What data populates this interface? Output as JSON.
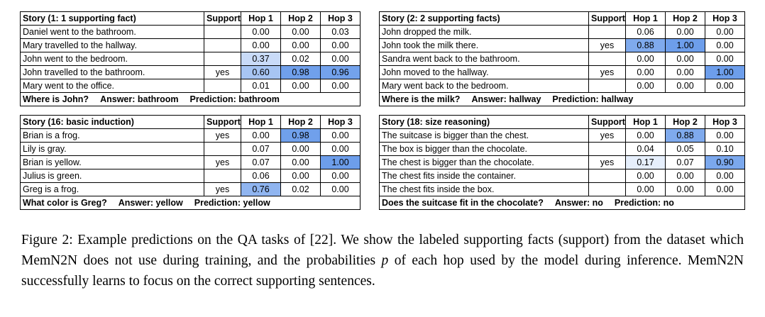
{
  "figure": {
    "highlight_color": "#6d9eeb",
    "min_highlight": 0.15,
    "column_headers": {
      "support": "Support",
      "hops": [
        "Hop 1",
        "Hop 2",
        "Hop 3"
      ]
    },
    "tables": [
      {
        "title": "Story (1: 1 supporting fact)",
        "rows": [
          {
            "sentence": "Daniel went to the bathroom.",
            "support": "",
            "hops": [
              "0.00",
              "0.00",
              "0.03"
            ]
          },
          {
            "sentence": "Mary travelled to the hallway.",
            "support": "",
            "hops": [
              "0.00",
              "0.00",
              "0.00"
            ]
          },
          {
            "sentence": "John went to the bedroom.",
            "support": "",
            "hops": [
              "0.37",
              "0.02",
              "0.00"
            ]
          },
          {
            "sentence": "John travelled to the bathroom.",
            "support": "yes",
            "hops": [
              "0.60",
              "0.98",
              "0.96"
            ]
          },
          {
            "sentence": "Mary went to the office.",
            "support": "",
            "hops": [
              "0.01",
              "0.00",
              "0.00"
            ]
          }
        ],
        "footer": {
          "question": "Where is John?",
          "answer": "Answer: bathroom",
          "prediction": "Prediction: bathroom"
        }
      },
      {
        "title": "Story (2: 2 supporting facts)",
        "rows": [
          {
            "sentence": "John dropped the milk.",
            "support": "",
            "hops": [
              "0.06",
              "0.00",
              "0.00"
            ]
          },
          {
            "sentence": "John took the milk there.",
            "support": "yes",
            "hops": [
              "0.88",
              "1.00",
              "0.00"
            ]
          },
          {
            "sentence": "Sandra went back to the bathroom.",
            "support": "",
            "hops": [
              "0.00",
              "0.00",
              "0.00"
            ]
          },
          {
            "sentence": "John moved to the hallway.",
            "support": "yes",
            "hops": [
              "0.00",
              "0.00",
              "1.00"
            ]
          },
          {
            "sentence": "Mary went back to the bedroom.",
            "support": "",
            "hops": [
              "0.00",
              "0.00",
              "0.00"
            ]
          }
        ],
        "footer": {
          "question": "Where is the milk?",
          "answer": "Answer: hallway",
          "prediction": "Prediction: hallway"
        }
      },
      {
        "title": "Story (16: basic induction)",
        "rows": [
          {
            "sentence": "Brian is a frog.",
            "support": "yes",
            "hops": [
              "0.00",
              "0.98",
              "0.00"
            ]
          },
          {
            "sentence": "Lily is gray.",
            "support": "",
            "hops": [
              "0.07",
              "0.00",
              "0.00"
            ]
          },
          {
            "sentence": "Brian is yellow.",
            "support": "yes",
            "hops": [
              "0.07",
              "0.00",
              "1.00"
            ]
          },
          {
            "sentence": "Julius is green.",
            "support": "",
            "hops": [
              "0.06",
              "0.00",
              "0.00"
            ]
          },
          {
            "sentence": "Greg is a frog.",
            "support": "yes",
            "hops": [
              "0.76",
              "0.02",
              "0.00"
            ]
          }
        ],
        "footer": {
          "question": "What color is Greg?",
          "answer": "Answer: yellow",
          "prediction": "Prediction: yellow"
        }
      },
      {
        "title": "Story (18: size reasoning)",
        "rows": [
          {
            "sentence": "The suitcase is bigger than the chest.",
            "support": "yes",
            "hops": [
              "0.00",
              "0.88",
              "0.00"
            ]
          },
          {
            "sentence": "The box is bigger than the chocolate.",
            "support": "",
            "hops": [
              "0.04",
              "0.05",
              "0.10"
            ]
          },
          {
            "sentence": "The chest is bigger than the chocolate.",
            "support": "yes",
            "hops": [
              "0.17",
              "0.07",
              "0.90"
            ]
          },
          {
            "sentence": "The chest fits inside the container.",
            "support": "",
            "hops": [
              "0.00",
              "0.00",
              "0.00"
            ]
          },
          {
            "sentence": "The chest fits inside the box.",
            "support": "",
            "hops": [
              "0.00",
              "0.00",
              "0.00"
            ]
          }
        ],
        "footer": {
          "question": "Does the suitcase fit in the chocolate?",
          "answer": "Answer: no",
          "prediction": "Prediction: no"
        }
      }
    ]
  },
  "caption": {
    "segments": [
      {
        "text": "Figure 2: Example predictions on the QA tasks of [22]. We show the labeled supporting facts (support) from the dataset which MemN2N does not use during training, and the probabilities "
      },
      {
        "text": "p",
        "italic": true
      },
      {
        "text": " of each hop used by the model during inference. MemN2N successfully learns to focus on the correct supporting sentences."
      }
    ]
  }
}
